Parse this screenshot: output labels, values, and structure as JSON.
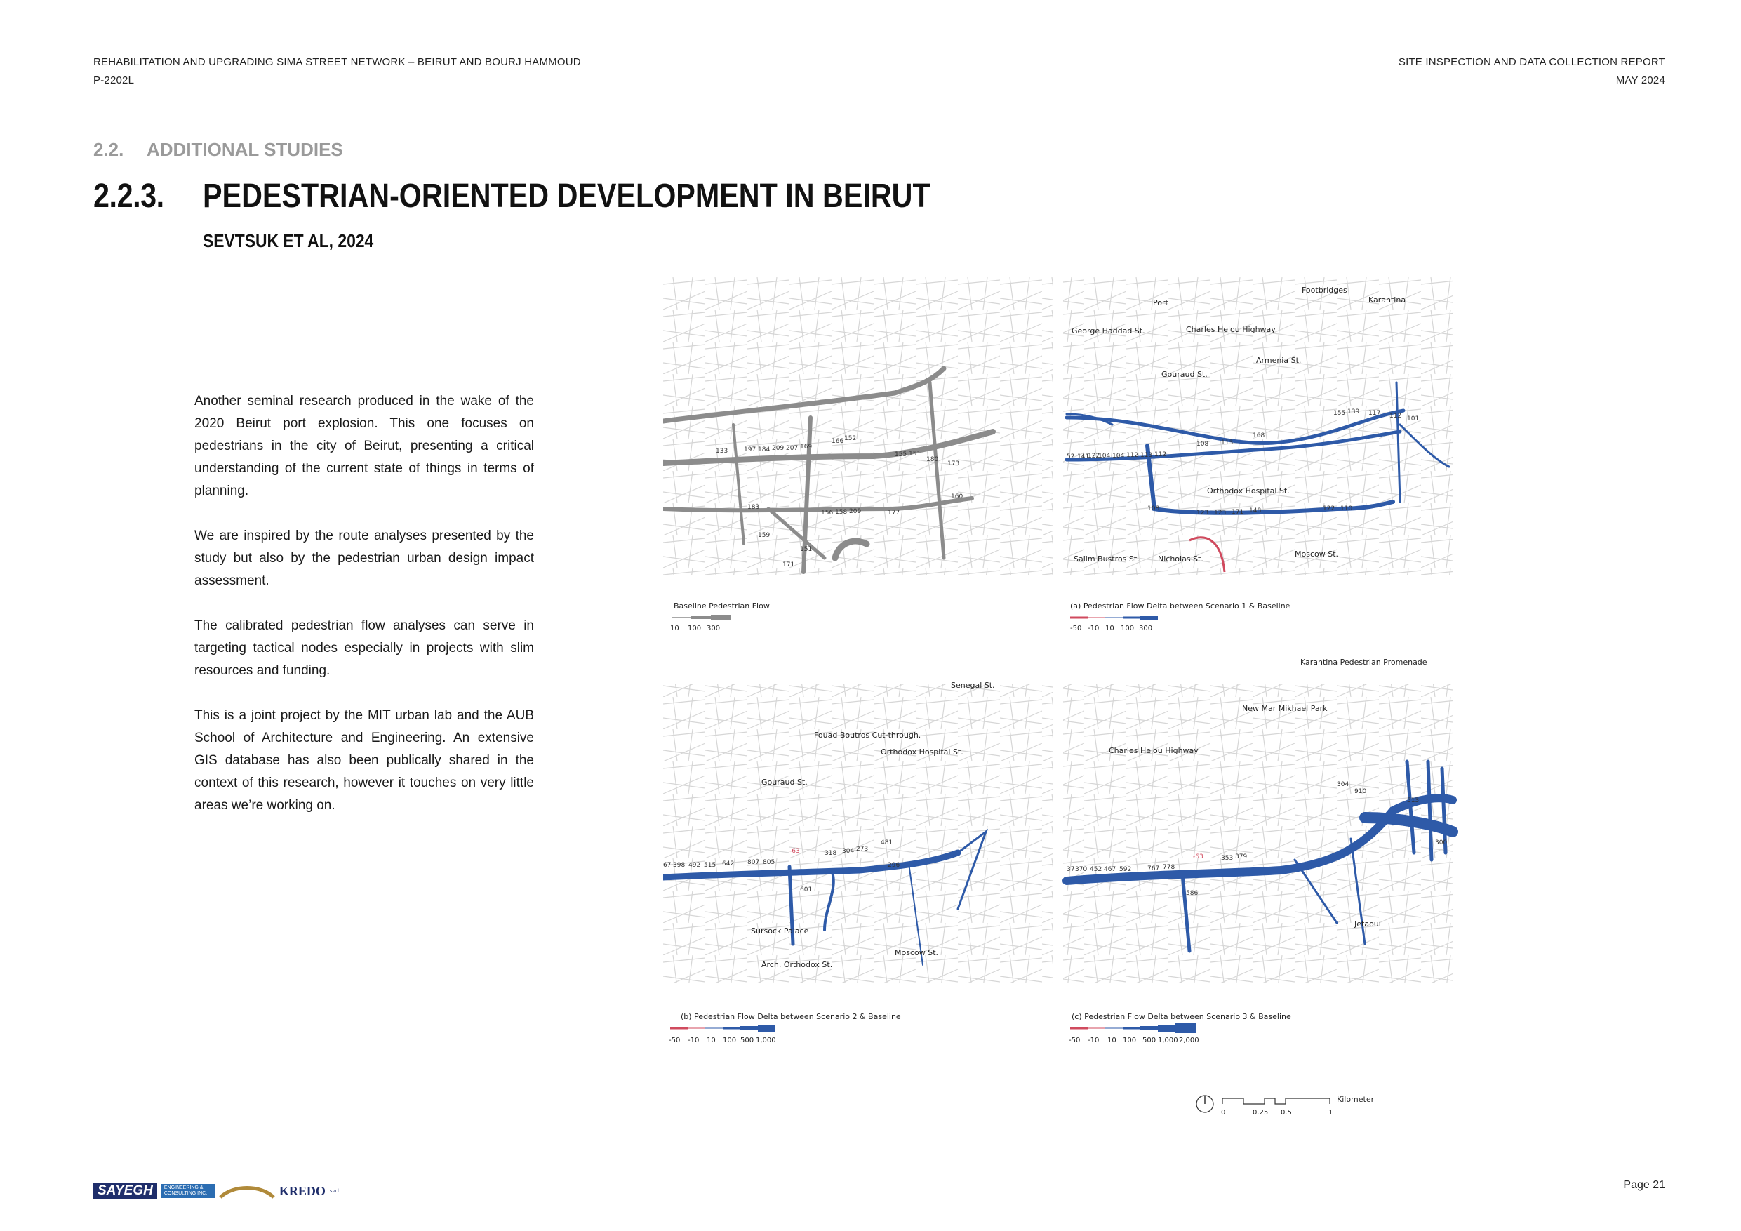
{
  "header": {
    "project_title": "REHABILITATION AND UPGRADING SIMA STREET NETWORK – BEIRUT AND BOURJ HAMMOUD",
    "project_code": "P-2202L",
    "report_title": "SITE INSPECTION AND DATA COLLECTION REPORT",
    "report_date": "MAY 2024"
  },
  "section": {
    "number": "2.2.",
    "title": "ADDITIONAL STUDIES"
  },
  "subsection": {
    "number": "2.2.3.",
    "title": "PEDESTRIAN-ORIENTED DEVELOPMENT IN BEIRUT",
    "author": "SEVTSUK ET AL, 2024"
  },
  "paragraphs": [
    "Another seminal research produced in the wake of the 2020 Beirut port explosion. This one focuses on pedestrians in the city of Beirut, presenting a critical understanding of the current state of things in terms of planning.",
    "We are inspired by the route analyses presented by the study but also by the pedestrian urban design impact assessment.",
    "The calibrated pedestrian flow analyses can serve in targeting tactical nodes especially in projects with slim resources and funding.",
    "This is a joint project by the MIT urban lab and the AUB School of Architecture and Engineering. An extensive GIS database has also been publically shared in the context of this research, however it touches on very little areas we’re working on."
  ],
  "figure": {
    "colors": {
      "baseline": "#8c8c8c",
      "increase": "#2e5aa8",
      "decrease": "#d04a5e",
      "streets": "#cfcfcf"
    },
    "panels": {
      "baseline": {
        "caption": "Baseline Pedestrian Flow",
        "legend": [
          "10",
          "100",
          "300"
        ],
        "labels": [
          "133",
          "197",
          "184",
          "209",
          "207",
          "169",
          "166",
          "152",
          "203",
          "254",
          "255",
          "196",
          "155",
          "151",
          "180",
          "173",
          "183",
          "156",
          "158",
          "209",
          "177",
          "160",
          "159",
          "151",
          "171"
        ]
      },
      "a": {
        "caption": "(a) Pedestrian Flow Delta between Scenario 1 & Baseline",
        "legend": [
          "-50",
          "-10",
          "10",
          "100",
          "300"
        ],
        "places": [
          "Footbridges",
          "Port",
          "Karantina",
          "George Haddad St.",
          "Charles Helou Highway",
          "Armenia St.",
          "Gouraud St.",
          "Orthodox Hospital St.",
          "Salim Bustros St.",
          "Nicholas St.",
          "Moscow St."
        ],
        "labels": [
          "52",
          "141",
          "122",
          "104",
          "104",
          "112",
          "113",
          "112",
          "108",
          "113",
          "168",
          "155",
          "139",
          "117",
          "112",
          "101",
          "108",
          "123",
          "123",
          "171",
          "148",
          "122",
          "110"
        ]
      },
      "b": {
        "caption": "(b) Pedestrian Flow Delta between Scenario 2 & Baseline",
        "legend": [
          "-50",
          "-10",
          "10",
          "100",
          "500",
          "1,000"
        ],
        "places": [
          "Senegal St.",
          "Fouad Boutros Cut-through.",
          "Orthodox Hospital St.",
          "Gouraud St.",
          "Sursock Palace",
          "Moscow St.",
          "Arch. Orthodox St."
        ],
        "labels": [
          "67",
          "398",
          "492",
          "515",
          "642",
          "807",
          "805",
          "-63",
          "318",
          "304",
          "273",
          "481",
          "601",
          "296"
        ]
      },
      "c": {
        "caption": "(c) Pedestrian Flow Delta between Scenario 3 & Baseline",
        "legend": [
          "-50",
          "-10",
          "10",
          "100",
          "500",
          "1,000",
          "2,000"
        ],
        "places": [
          "Karantina Pedestrian Promenade",
          "New Mar Mikhael Park",
          "Charles Helou Highway",
          "Jetaoui"
        ],
        "labels": [
          "37",
          "370",
          "452",
          "467",
          "592",
          "767",
          "778",
          "-63",
          "353",
          "379",
          "586",
          "304",
          "910",
          "513",
          "300"
        ]
      }
    },
    "scale": {
      "ticks": [
        "0",
        "0.25",
        "0.5",
        "1"
      ],
      "unit": "Kilometer"
    }
  },
  "footer": {
    "page": "Page 21",
    "logos": {
      "consultant": "SAYEGH",
      "consultant_sub": "ENGINEERING & CONSULTING INC.",
      "partner": "KREDO",
      "partner_sub": "s.a.l."
    }
  }
}
